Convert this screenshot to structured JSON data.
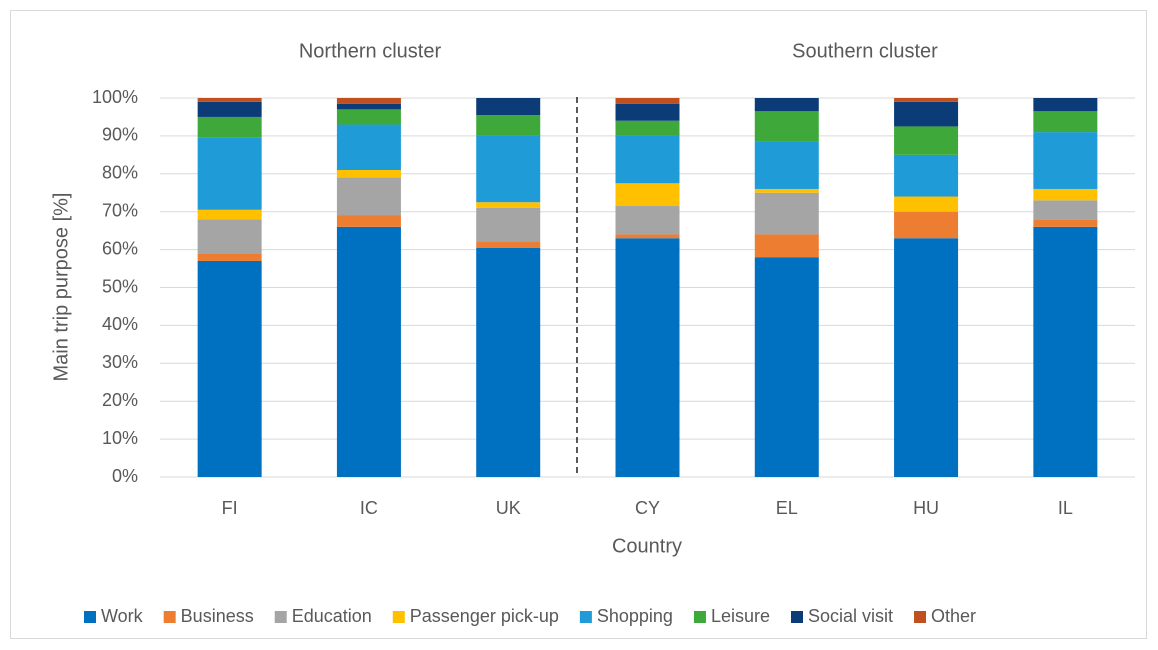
{
  "chart_data": {
    "type": "stacked_bar",
    "annotations": [
      "Northern cluster",
      "Southern cluster"
    ],
    "x_label": "Country",
    "y_label": "Main trip purpose [%]",
    "categories": [
      "FI",
      "IC",
      "UK",
      "CY",
      "EL",
      "HU",
      "IL"
    ],
    "series": [
      {
        "name": "Work",
        "color": "#0070c0",
        "values": [
          57,
          66,
          60.5,
          63,
          58,
          63,
          66
        ]
      },
      {
        "name": "Business",
        "color": "#ed7d31",
        "values": [
          2,
          3,
          1.5,
          1,
          6,
          7,
          2
        ]
      },
      {
        "name": "Education",
        "color": "#a5a5a5",
        "values": [
          9,
          10,
          9,
          7.5,
          11,
          0,
          5
        ]
      },
      {
        "name": "Passenger pick-up",
        "color": "#ffc000",
        "values": [
          2.5,
          2,
          1.5,
          6,
          1,
          4,
          3
        ]
      },
      {
        "name": "Shopping",
        "color": "#1f9bd7",
        "values": [
          19,
          12,
          17.5,
          12.5,
          12.5,
          11,
          15
        ]
      },
      {
        "name": "Leisure",
        "color": "#3ea93a",
        "values": [
          5.5,
          4,
          5.5,
          4,
          8,
          7.5,
          5.5
        ]
      },
      {
        "name": "Social visit",
        "color": "#0b3c78",
        "values": [
          4,
          1.5,
          4.5,
          4.5,
          3.5,
          6.5,
          3.5
        ]
      },
      {
        "name": "Other",
        "color": "#c0501f",
        "values": [
          1,
          1.5,
          0,
          1.5,
          0,
          1,
          0
        ]
      }
    ],
    "ylim": [
      0,
      100
    ],
    "yticks": [
      {
        "value": 0,
        "label": "0%"
      },
      {
        "value": 10,
        "label": "10%"
      },
      {
        "value": 20,
        "label": "20%"
      },
      {
        "value": 30,
        "label": "30%"
      },
      {
        "value": 40,
        "label": "40%"
      },
      {
        "value": 50,
        "label": "50%"
      },
      {
        "value": 60,
        "label": "60%"
      },
      {
        "value": 70,
        "label": "70%"
      },
      {
        "value": 80,
        "label": "80%"
      },
      {
        "value": 90,
        "label": "90%"
      },
      {
        "value": 100,
        "label": "100%"
      }
    ],
    "grid": true,
    "legend": "bottom"
  }
}
